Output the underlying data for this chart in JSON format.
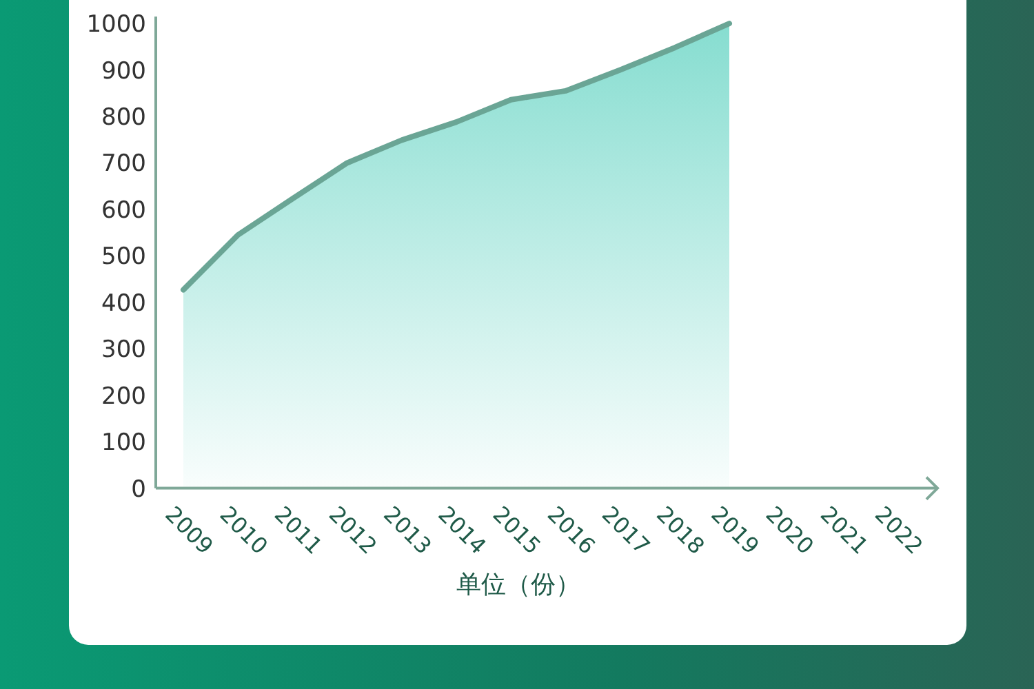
{
  "chart_data": {
    "type": "area",
    "xlabel": "单位（份）",
    "categories": [
      "2009",
      "2010",
      "2011",
      "2012",
      "2013",
      "2014",
      "2015",
      "2016",
      "2017",
      "2018",
      "2019",
      "2020",
      "2021",
      "2022"
    ],
    "series": [
      {
        "color": "#6aa595",
        "values": [
          427,
          545,
          623,
          700,
          749,
          788,
          836,
          855,
          900,
          948,
          1000,
          null,
          null,
          null
        ]
      }
    ],
    "ylim": [
      0,
      1015
    ],
    "yticks": [
      0,
      100,
      200,
      300,
      400,
      500,
      600,
      700,
      800,
      900,
      1000
    ]
  }
}
